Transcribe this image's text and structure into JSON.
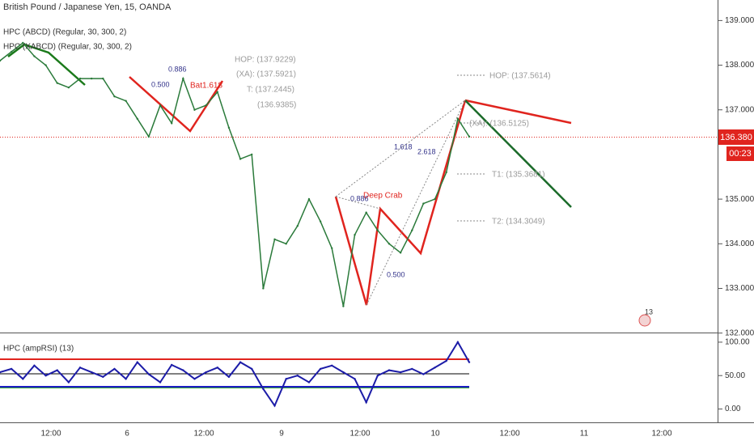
{
  "header": {
    "title": "British Pound / Japanese Yen, 15, OANDA",
    "indicators": [
      "HPC (ABCD) (Regular, 30, 300, 2)",
      "HPC (XABCD) (Regular, 30, 300, 2)"
    ]
  },
  "price_pane": {
    "values": [
      138.1,
      138.3,
      138.5,
      138.2,
      138.0,
      137.6,
      137.5,
      137.7,
      137.7,
      137.7,
      137.3,
      137.2,
      136.8,
      136.4,
      137.1,
      136.7,
      137.7,
      137.0,
      137.1,
      137.4,
      136.6,
      135.9,
      136.0,
      133.0,
      134.1,
      134.0,
      134.4,
      135.0,
      134.5,
      133.9,
      132.6,
      134.2,
      134.7,
      134.3,
      134.0,
      133.8,
      134.3,
      134.9,
      135.0,
      135.6,
      136.8,
      136.4
    ],
    "ylim": [
      132.03,
      139.46
    ],
    "yticks": [
      {
        "value": 132,
        "label": "132.000"
      },
      {
        "value": 133,
        "label": "133.000"
      },
      {
        "value": 134,
        "label": "134.000"
      },
      {
        "value": 135,
        "label": "135.000"
      },
      {
        "value": 137,
        "label": "137.000"
      },
      {
        "value": 138,
        "label": "138.000"
      },
      {
        "value": 139,
        "label": "139.000"
      }
    ],
    "last_price": "136.380",
    "countdown": "00:23"
  },
  "rsi_pane": {
    "title": "HPC (ampRSI) (13)",
    "values": [
      55,
      60,
      45,
      65,
      50,
      58,
      40,
      62,
      55,
      48,
      60,
      45,
      70,
      52,
      40,
      66,
      58,
      45,
      55,
      62,
      48,
      70,
      60,
      30,
      5,
      45,
      50,
      40,
      60,
      65,
      55,
      45,
      10,
      50,
      58,
      55,
      60,
      52,
      62,
      72,
      100,
      70
    ],
    "ylim": [
      -20,
      112
    ],
    "yticks": [
      {
        "value": 0,
        "label": "0.00"
      },
      {
        "value": 50,
        "label": "50.00"
      },
      {
        "value": 100,
        "label": "100.00"
      }
    ]
  },
  "time_axis": [
    "12:00",
    "6",
    "12:00",
    "9",
    "12:00",
    "10",
    "12:00",
    "11",
    "12:00"
  ],
  "annotations": {
    "hop1": "HOP: (137.9229)",
    "xa1": "(XA): (137.5921)",
    "t1a": "T: (137.2445)",
    "t2a": "(136.9385)",
    "hop2": "HOP: (137.5614)",
    "xa2": "(XA): (136.5125)",
    "t1": "T1: (135.3681)",
    "t2": "T2: (134.3049)",
    "crab": "Deep Crab",
    "bat": "Bat1.618",
    "r1": "1.618",
    "r2": "2.618",
    "r3": "0.886",
    "r4": "0.500",
    "r5": "0.886",
    "r6": "0.500",
    "badge": "13"
  }
}
